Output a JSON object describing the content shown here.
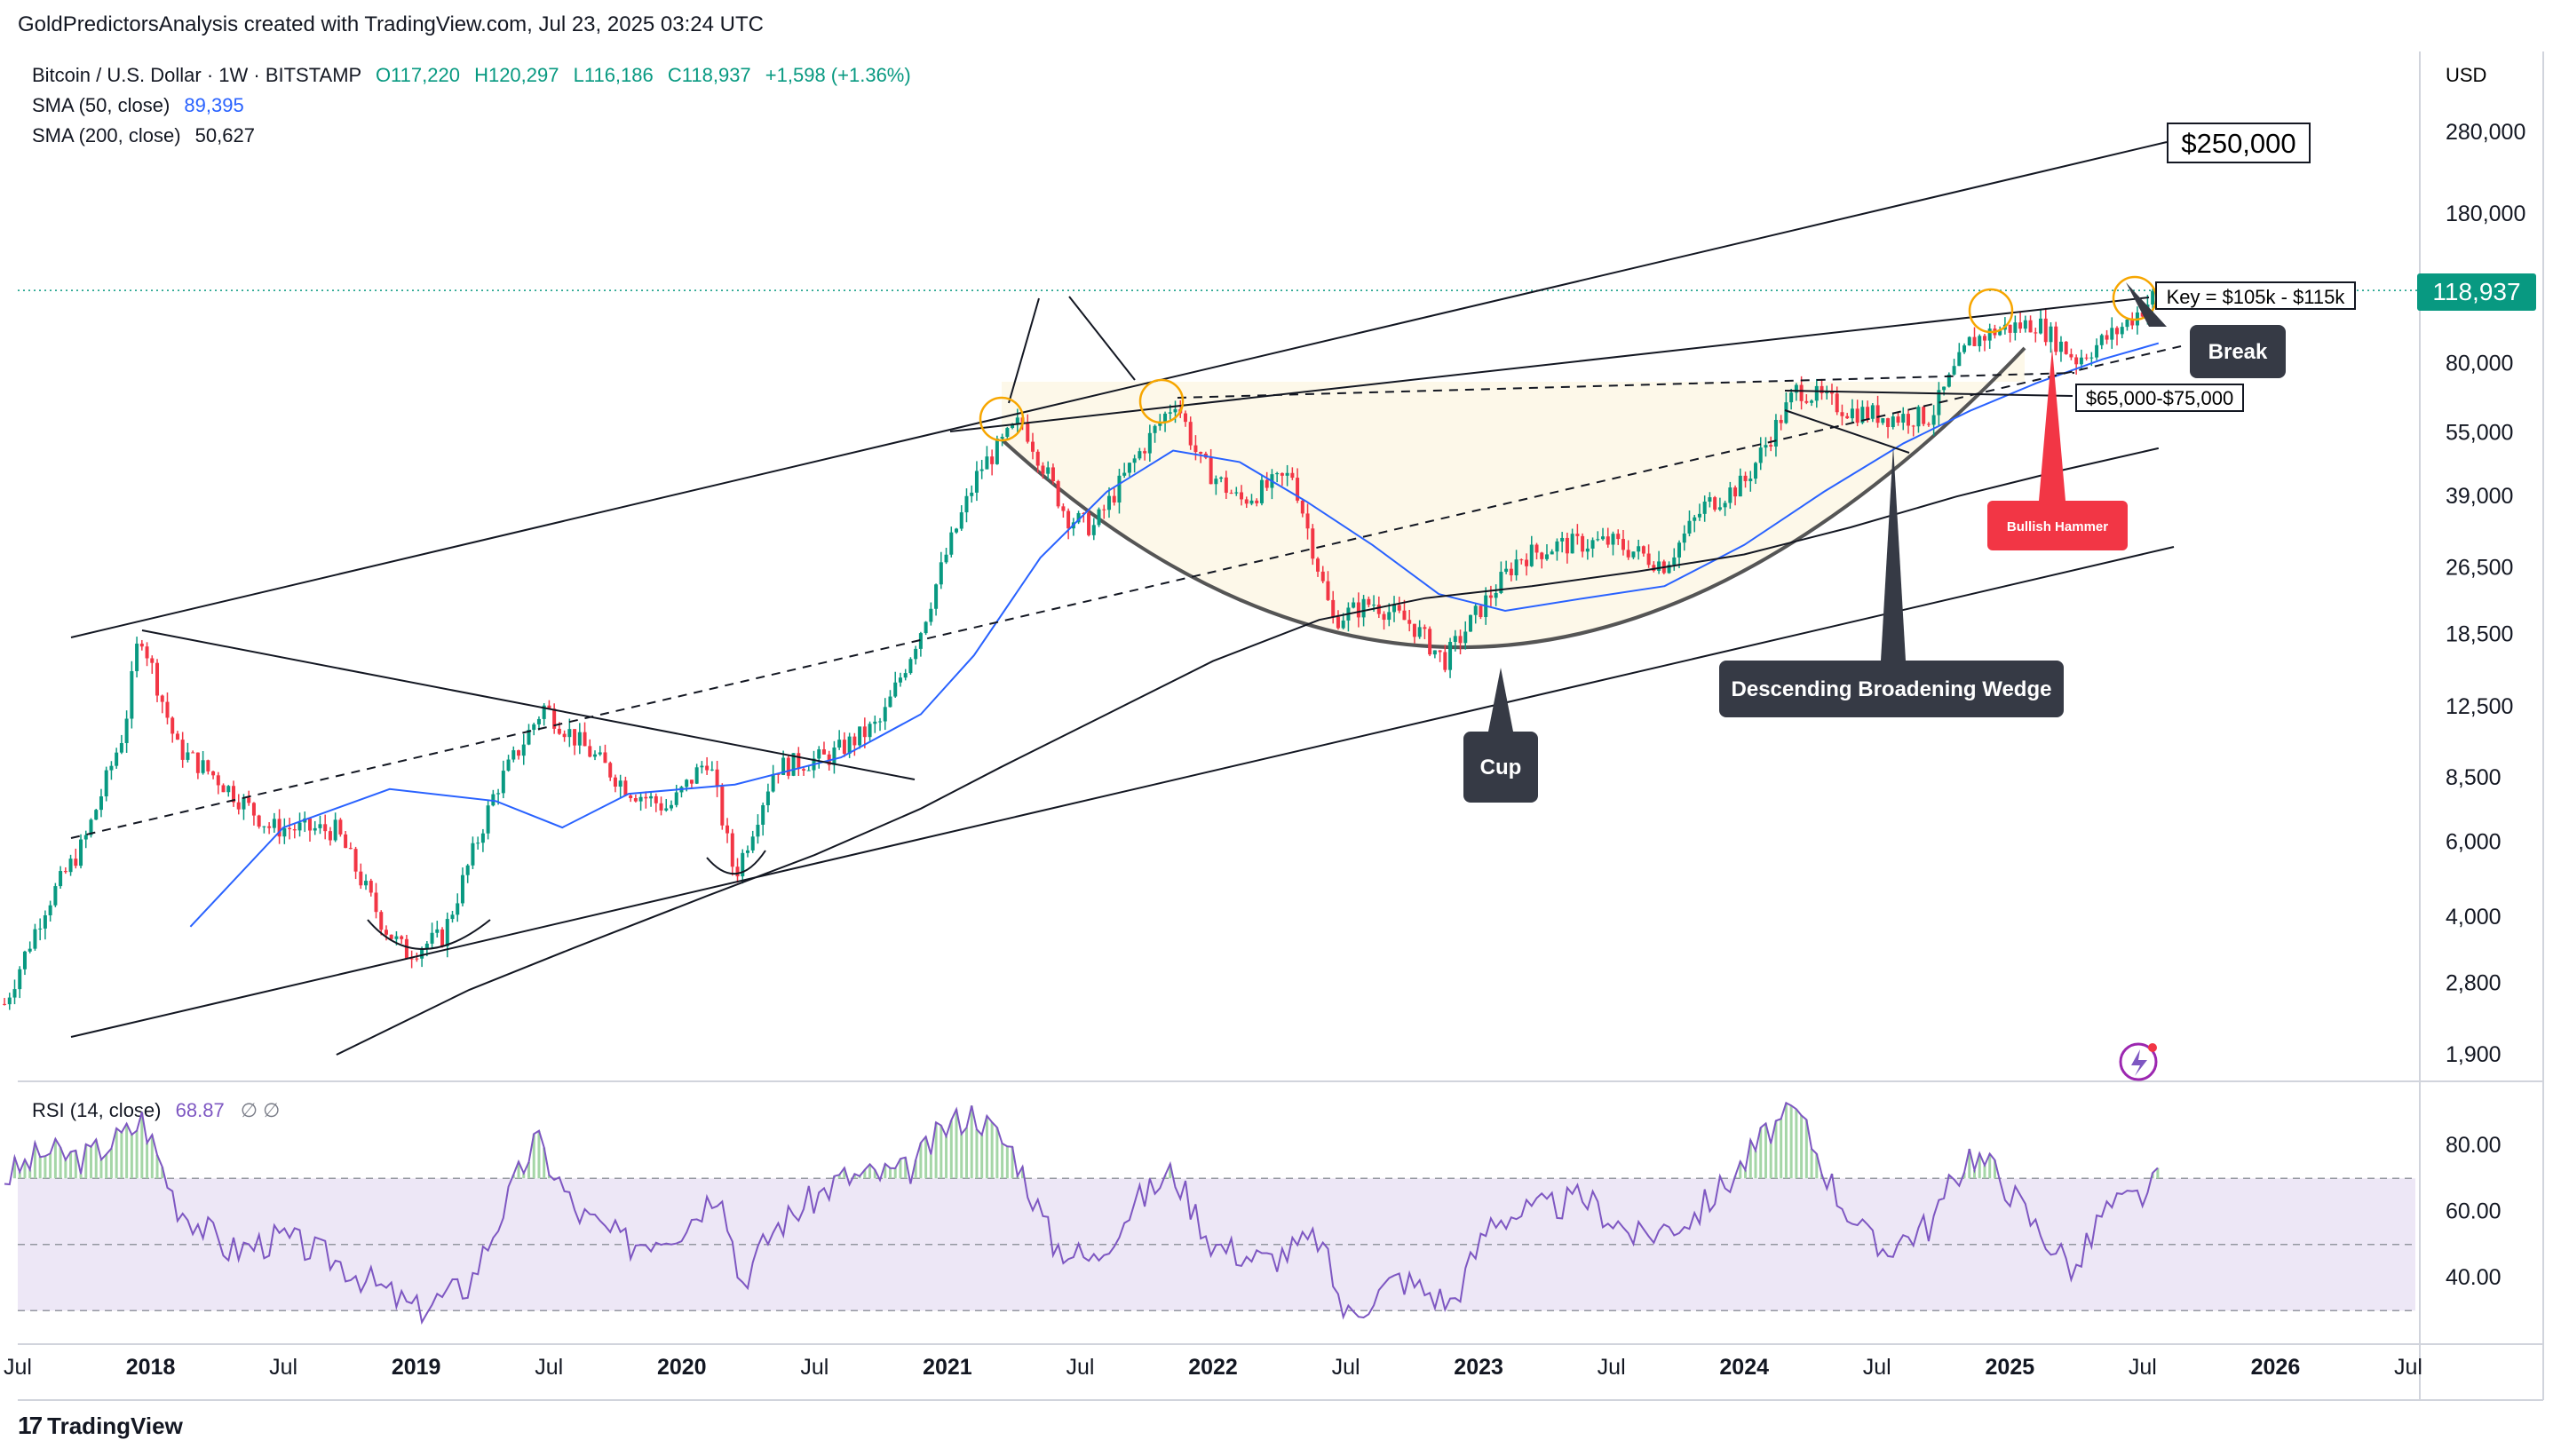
{
  "header": {
    "attribution": "GoldPredictorsAnalysis created with TradingView.com, Jul 23, 2025 03:24 UTC"
  },
  "legend": {
    "symbol": "Bitcoin / U.S. Dollar · 1W · BITSTAMP",
    "open": "O117,220",
    "high": "H120,297",
    "low": "L116,186",
    "close": "C118,937",
    "change": "+1,598 (+1.36%)",
    "sma50_label": "SMA (50, close)",
    "sma50_value": "89,395",
    "sma200_label": "SMA (200, close)",
    "sma200_value": "50,627",
    "rsi_label": "RSI (14, close)",
    "rsi_value": "68.87",
    "rsi_extra": "∅  ∅"
  },
  "colors": {
    "bull": "#089981",
    "bear": "#f23645",
    "sma50": "#2962ff",
    "sma200": "#131722",
    "rsi": "#7e57c2",
    "rsi_band": "#ede7f6",
    "price_label": "#089981",
    "hammer": "#f23645",
    "callout": "#363a45"
  },
  "axis": {
    "currency": "USD",
    "price_label": "118,937"
  },
  "footer": {
    "brand": "TradingView",
    "logo": "17"
  },
  "annotations": {
    "target": "$250,000",
    "key": "Key = $105k - $115k",
    "break": "Break",
    "support": "$65,000-$75,000",
    "hammer": "Bullish Hammer",
    "wedge": "Descending Broadening Wedge",
    "cup": "Cup"
  },
  "chart_data": [
    {
      "type": "line",
      "title": "",
      "y_scale": "log",
      "y_ticks": [
        "280,000",
        "180,000",
        "80,000",
        "55,000",
        "39,000",
        "26,500",
        "18,500",
        "12,500",
        "8,500",
        "6,000",
        "4,000",
        "2,800",
        "1,900"
      ],
      "x_ticks": [
        "Jul",
        "2018",
        "Jul",
        "2019",
        "Jul",
        "2020",
        "Jul",
        "2021",
        "Jul",
        "2022",
        "Jul",
        "2023",
        "Jul",
        "2024",
        "Jul",
        "2025",
        "Jul",
        "2026",
        "Jul"
      ],
      "x_tick_dates": [
        2017.5,
        2018.0,
        2018.5,
        2019.0,
        2019.5,
        2020.0,
        2020.5,
        2021.0,
        2021.5,
        2022.0,
        2022.5,
        2023.0,
        2023.5,
        2024.0,
        2024.5,
        2025.0,
        2025.5,
        2026.0,
        2026.5
      ],
      "series": [
        {
          "name": "BTCUSD",
          "x": [
            2017.45,
            2017.6,
            2017.75,
            2017.9,
            2017.96,
            2018.1,
            2018.25,
            2018.45,
            2018.7,
            2018.88,
            2018.96,
            2019.1,
            2019.3,
            2019.48,
            2019.6,
            2019.8,
            2019.95,
            2020.1,
            2020.2,
            2020.35,
            2020.55,
            2020.75,
            2020.9,
            2021.0,
            2021.12,
            2021.28,
            2021.45,
            2021.55,
            2021.7,
            2021.86,
            2021.95,
            2022.1,
            2022.3,
            2022.45,
            2022.6,
            2022.75,
            2022.87,
            2023.0,
            2023.15,
            2023.3,
            2023.5,
            2023.7,
            2023.85,
            2024.0,
            2024.2,
            2024.4,
            2024.55,
            2024.7,
            2024.85,
            2024.95,
            2025.1,
            2025.25,
            2025.4,
            2025.5,
            2025.56
          ],
          "values": [
            2500,
            4200,
            6000,
            11000,
            19000,
            10000,
            8500,
            6500,
            6400,
            3800,
            3300,
            3600,
            8000,
            12500,
            10500,
            8000,
            7200,
            9500,
            5000,
            9000,
            9500,
            11500,
            19000,
            29000,
            45000,
            59000,
            35000,
            33000,
            47000,
            66000,
            47000,
            38000,
            44000,
            20000,
            22000,
            19500,
            16000,
            21000,
            28000,
            30000,
            30500,
            27000,
            37000,
            42000,
            70000,
            62000,
            60000,
            60000,
            90000,
            96000,
            100000,
            82000,
            95000,
            108000,
            118937
          ]
        },
        {
          "name": "SMA (50, close)",
          "x": [
            2018.15,
            2018.5,
            2018.9,
            2019.3,
            2019.55,
            2019.8,
            2020.2,
            2020.6,
            2020.9,
            2021.1,
            2021.35,
            2021.6,
            2021.85,
            2022.1,
            2022.35,
            2022.6,
            2022.85,
            2023.1,
            2023.4,
            2023.7,
            2024.0,
            2024.3,
            2024.6,
            2024.85,
            2025.1,
            2025.35,
            2025.56
          ],
          "values": [
            3800,
            6500,
            8000,
            7500,
            6500,
            7800,
            8200,
            9500,
            12000,
            16500,
            28000,
            40000,
            50000,
            47000,
            38000,
            30000,
            23000,
            21000,
            22500,
            24000,
            30000,
            40000,
            52000,
            62000,
            72000,
            82000,
            89395
          ]
        },
        {
          "name": "SMA (200, close)",
          "x": [
            2018.7,
            2019.2,
            2019.6,
            2020.1,
            2020.5,
            2020.9,
            2021.2,
            2021.6,
            2022.0,
            2022.4,
            2022.8,
            2023.2,
            2023.6,
            2024.0,
            2024.4,
            2024.8,
            2025.2,
            2025.56
          ],
          "values": [
            1900,
            2700,
            3400,
            4500,
            5600,
            7200,
            9000,
            12000,
            16000,
            20000,
            22500,
            24000,
            26000,
            28500,
            33000,
            39000,
            45000,
            50627
          ]
        }
      ]
    },
    {
      "type": "line",
      "title": "",
      "y_ticks": [
        "80.00",
        "60.00",
        "40.00"
      ],
      "band": [
        30,
        70
      ],
      "series": [
        {
          "name": "RSI (14, close)",
          "x": [
            2017.45,
            2017.6,
            2017.75,
            2017.92,
            2017.97,
            2018.1,
            2018.3,
            2018.5,
            2018.7,
            2018.9,
            2019.0,
            2019.2,
            2019.45,
            2019.6,
            2019.8,
            2020.0,
            2020.15,
            2020.22,
            2020.35,
            2020.6,
            2020.85,
            2021.0,
            2021.1,
            2021.25,
            2021.4,
            2021.55,
            2021.7,
            2021.85,
            2022.0,
            2022.2,
            2022.4,
            2022.5,
            2022.7,
            2022.9,
            2023.05,
            2023.2,
            2023.4,
            2023.6,
            2023.8,
            2023.95,
            2024.1,
            2024.2,
            2024.35,
            2024.5,
            2024.7,
            2024.85,
            2024.95,
            2025.1,
            2025.25,
            2025.35,
            2025.5,
            2025.56
          ],
          "values": [
            70,
            78,
            76,
            84,
            88,
            62,
            48,
            52,
            45,
            35,
            30,
            38,
            82,
            60,
            50,
            55,
            68,
            38,
            55,
            70,
            72,
            86,
            90,
            78,
            50,
            45,
            62,
            72,
            50,
            45,
            52,
            28,
            40,
            32,
            58,
            60,
            64,
            52,
            58,
            70,
            85,
            90,
            65,
            48,
            56,
            78,
            72,
            55,
            42,
            60,
            65,
            68.87
          ]
        }
      ]
    }
  ]
}
